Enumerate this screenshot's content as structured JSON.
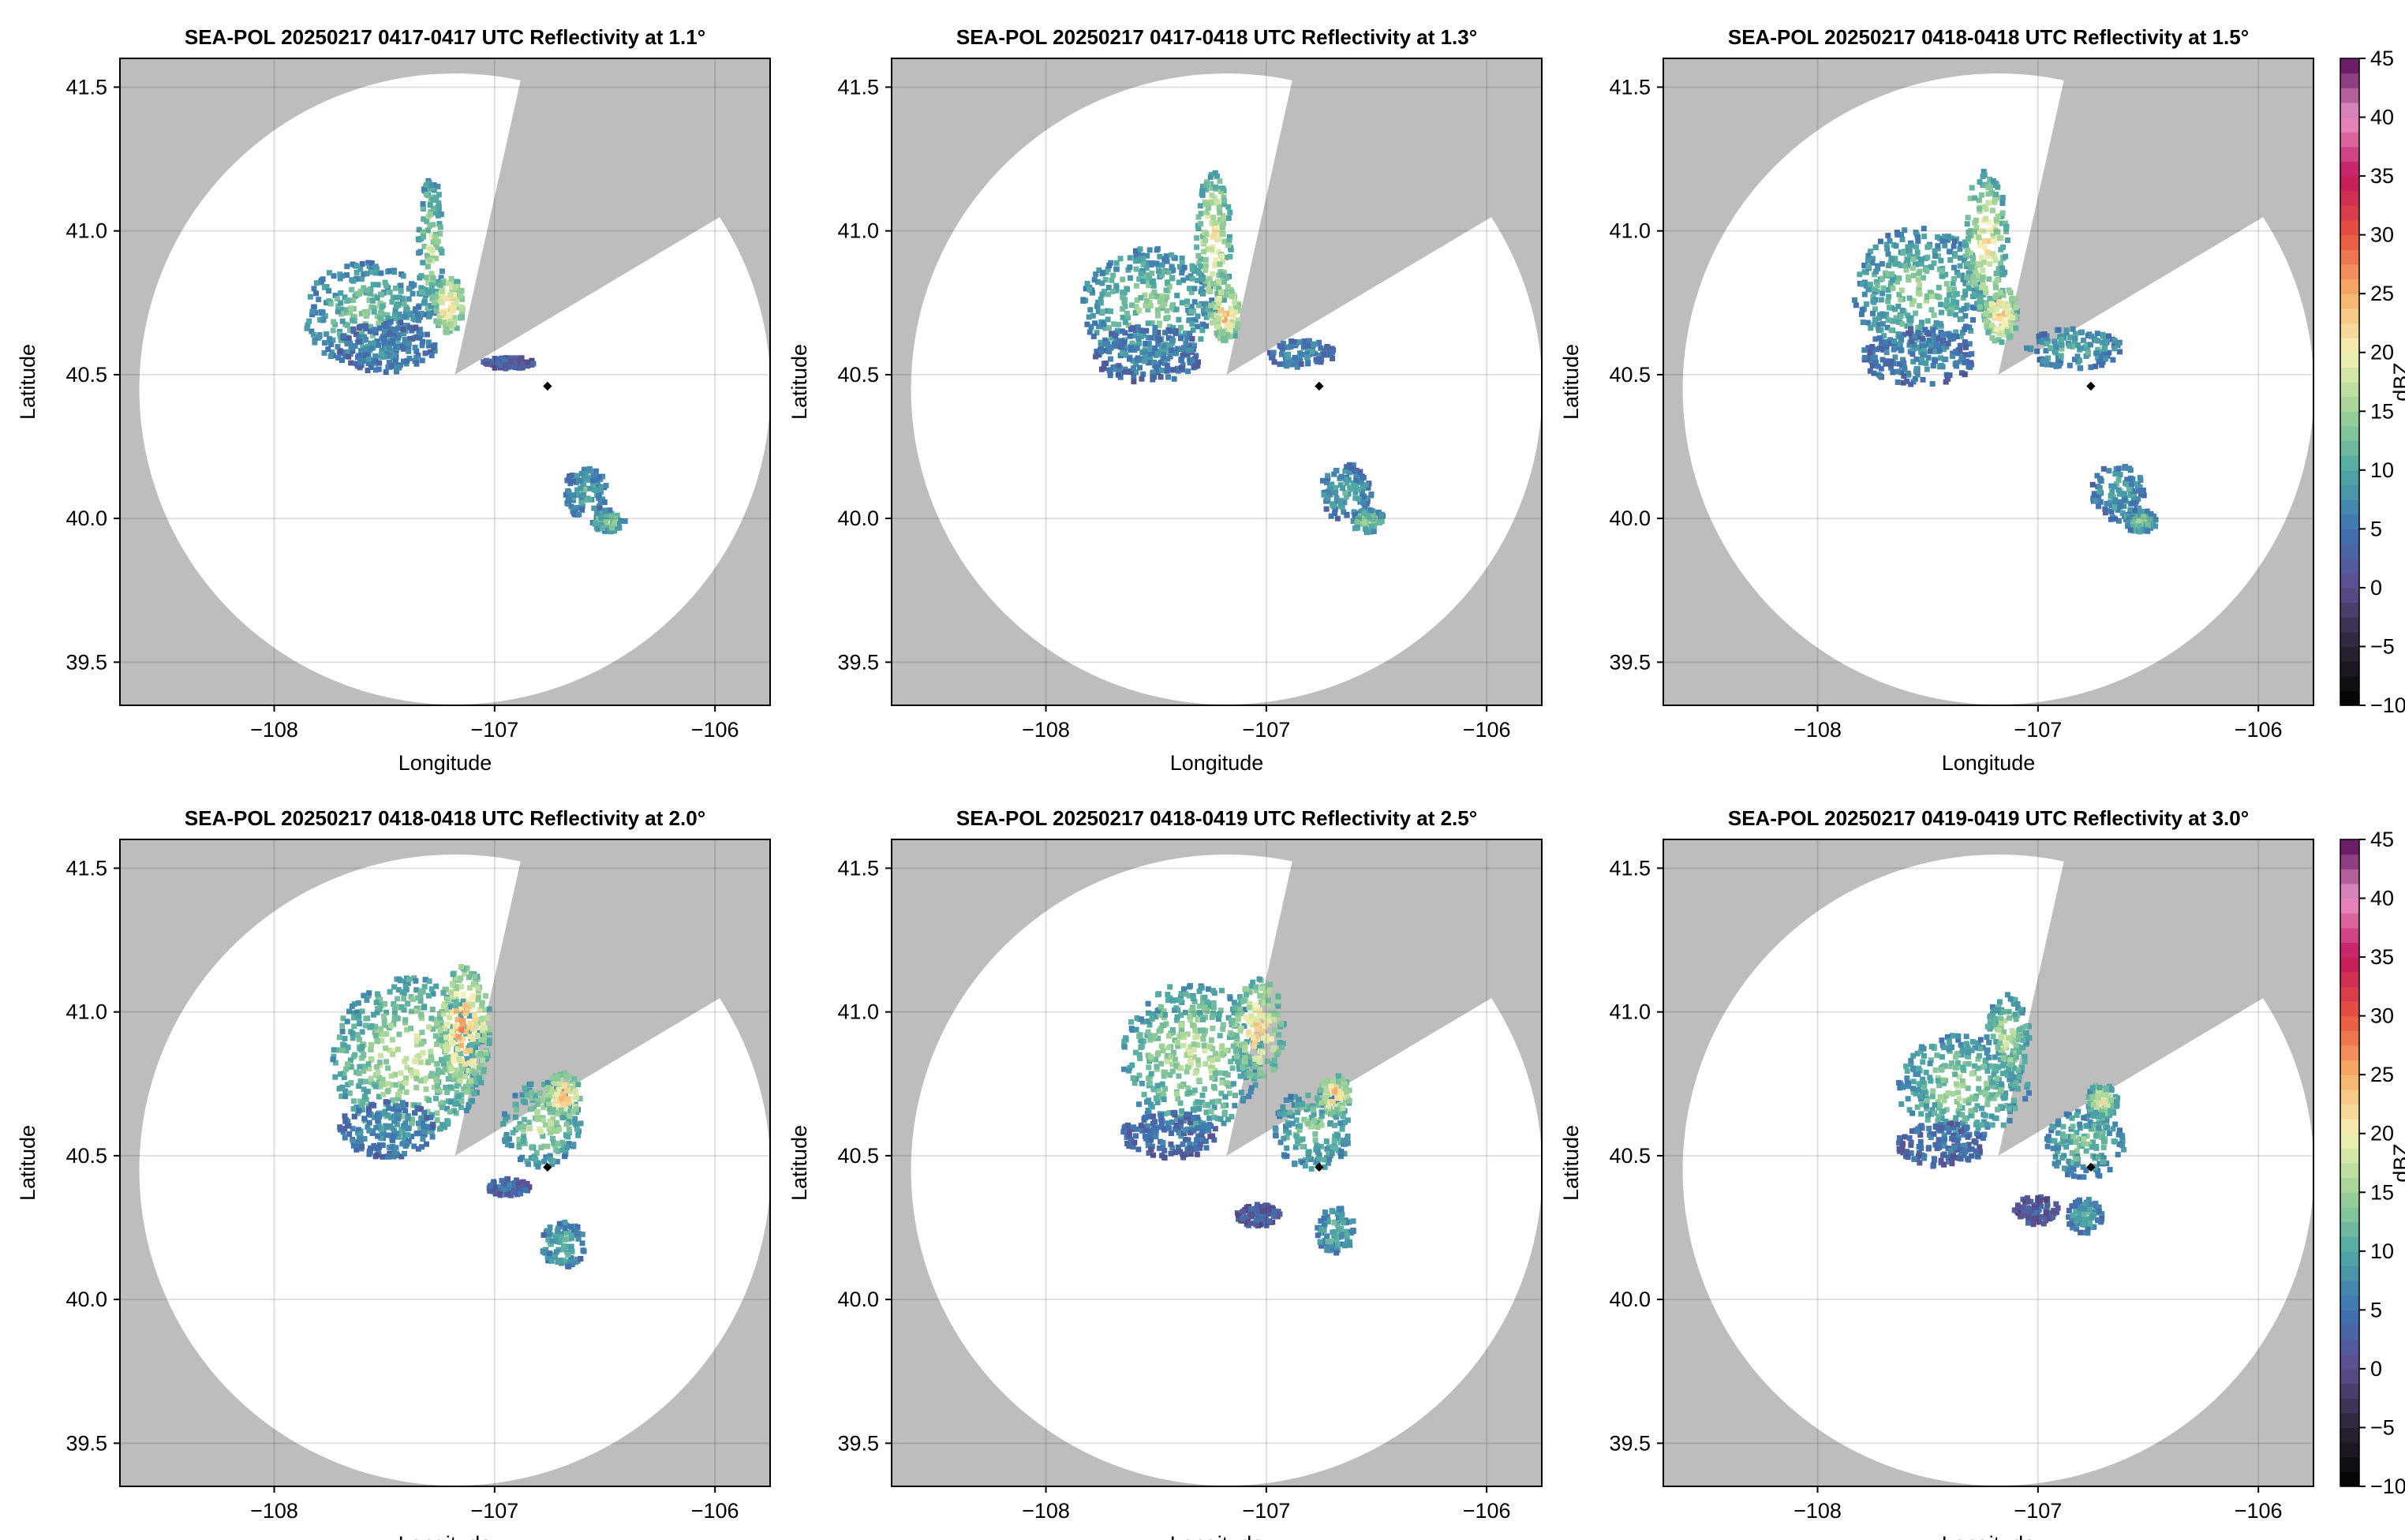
{
  "chart_data": {
    "type": "heatmap",
    "figure": {
      "colorbar_label": "dBZ",
      "colorbar_range": [
        -10,
        45
      ],
      "colorbar_ticks": [
        -10,
        -5,
        0,
        5,
        10,
        15,
        20,
        25,
        30,
        35,
        40,
        45
      ],
      "colorbar_tick_labels": [
        "−10",
        "−5",
        "0",
        "5",
        "10",
        "15",
        "20",
        "25",
        "30",
        "35",
        "40",
        "45"
      ],
      "colormap_stops": [
        {
          "value": -10,
          "color": "#000000"
        },
        {
          "value": -5,
          "color": "#2c2536"
        },
        {
          "value": 0,
          "color": "#5e4d8e"
        },
        {
          "value": 5,
          "color": "#3f74b3"
        },
        {
          "value": 10,
          "color": "#4fa9a4"
        },
        {
          "value": 15,
          "color": "#9fd296"
        },
        {
          "value": 20,
          "color": "#f5f2b4"
        },
        {
          "value": 25,
          "color": "#f7b06a"
        },
        {
          "value": 30,
          "color": "#e8543f"
        },
        {
          "value": 35,
          "color": "#c4185f"
        },
        {
          "value": 40,
          "color": "#e891c4"
        },
        {
          "value": 45,
          "color": "#5a0d5a"
        }
      ],
      "no_data_color": "#bdbdbd",
      "radar_location": {
        "lon": -106.76,
        "lat": 40.46
      },
      "radar_origin": {
        "lon": -107.18,
        "lat": 40.5
      }
    },
    "panels": [
      {
        "title": "SEA-POL 20250217 0417-0417 UTC Reflectivity at 1.1°",
        "elevation": 1.1,
        "xlabel": "Longitude",
        "ylabel": "Latitude"
      },
      {
        "title": "SEA-POL 20250217 0417-0418 UTC Reflectivity at 1.3°",
        "elevation": 1.3,
        "xlabel": "Longitude",
        "ylabel": "Latitude"
      },
      {
        "title": "SEA-POL 20250217 0418-0418 UTC Reflectivity at 1.5°",
        "elevation": 1.5,
        "xlabel": "Longitude",
        "ylabel": "Latitude"
      },
      {
        "title": "SEA-POL 20250217 0418-0418 UTC Reflectivity at 2.0°",
        "elevation": 2.0,
        "xlabel": "Longitude",
        "ylabel": "Latitude"
      },
      {
        "title": "SEA-POL 20250217 0418-0419 UTC Reflectivity at 2.5°",
        "elevation": 2.5,
        "xlabel": "Longitude",
        "ylabel": "Latitude"
      },
      {
        "title": "SEA-POL 20250217 0419-0419 UTC Reflectivity at 3.0°",
        "elevation": 3.0,
        "xlabel": "Longitude",
        "ylabel": "Latitude"
      }
    ],
    "xlim": [
      -108.7,
      -105.75
    ],
    "ylim": [
      39.35,
      41.6
    ],
    "xticks": [
      -108,
      -107,
      -106
    ],
    "xtick_labels": [
      "−108",
      "−107",
      "−106"
    ],
    "yticks": [
      39.5,
      40.0,
      40.5,
      41.0,
      41.5
    ],
    "ytick_labels": [
      "39.5",
      "40.0",
      "40.5",
      "41.0",
      "41.5"
    ],
    "grid": true
  }
}
